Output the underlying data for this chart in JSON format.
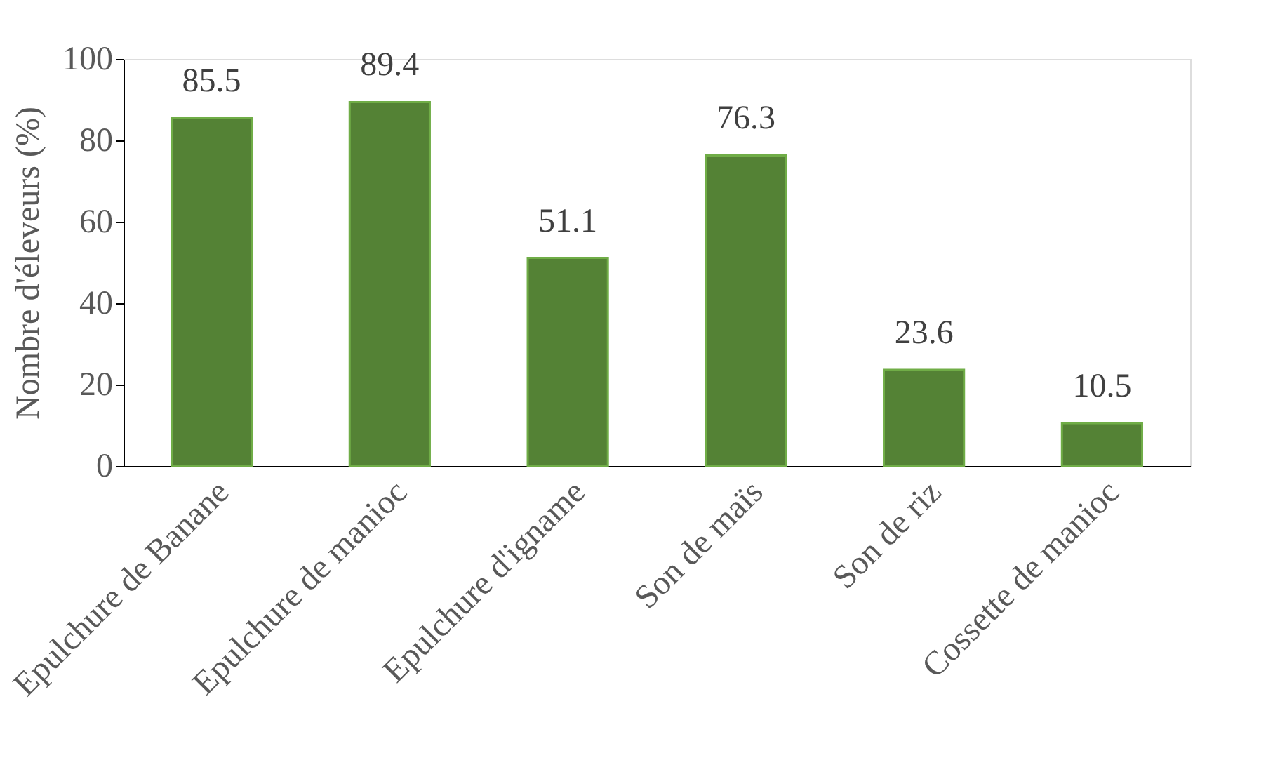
{
  "chart_data": {
    "type": "bar",
    "ylabel": "Nombre d'éleveurs  (%)",
    "categories": [
      "Epulchure de Banane",
      "Epulchure de manioc",
      "Epulchure d'igname",
      "Son de maïs",
      "Son de riz",
      "Cossette de manioc"
    ],
    "values": [
      85.5,
      89.4,
      51.1,
      76.3,
      23.6,
      10.5
    ],
    "color": "#548235",
    "ylim": [
      0,
      100
    ],
    "yticks": [
      0,
      20,
      40,
      60,
      80,
      100
    ],
    "grid": false,
    "data_labels": true
  }
}
